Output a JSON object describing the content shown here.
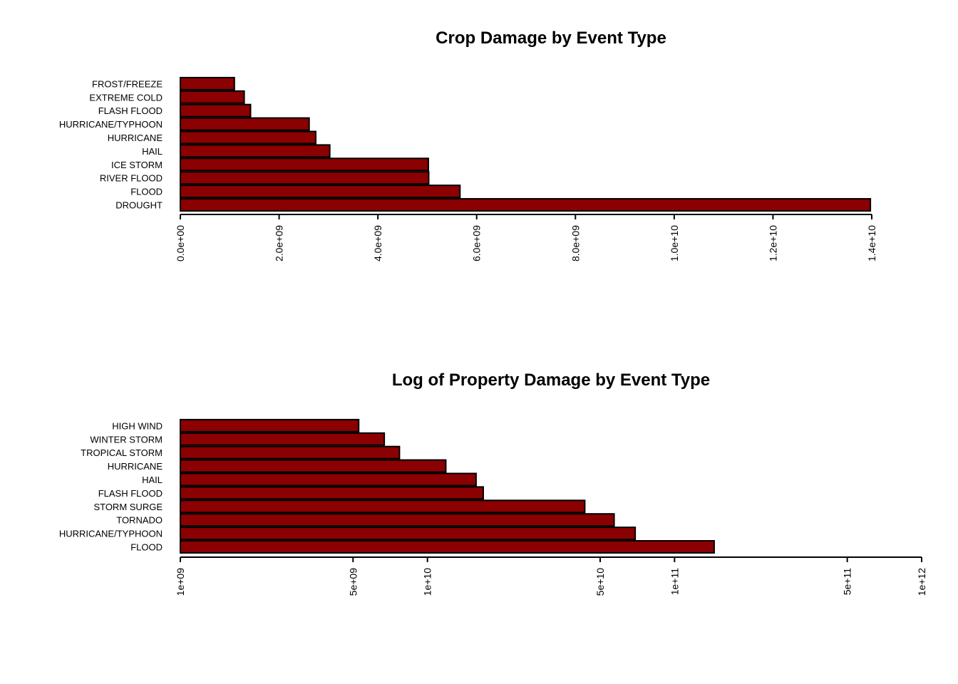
{
  "chart_data": [
    {
      "type": "bar",
      "orientation": "horizontal",
      "title": "Crop Damage by Event Type",
      "xlabel": "",
      "ylabel": "",
      "scale": "linear",
      "xlim": [
        0,
        14000000000
      ],
      "bar_color": "#8B0000",
      "categories": [
        "DROUGHT",
        "FLOOD",
        "RIVER FLOOD",
        "ICE STORM",
        "HAIL",
        "HURRICANE",
        "HURRICANE/TYPHOON",
        "FLASH FLOOD",
        "EXTREME COLD",
        "FROST/FREEZE"
      ],
      "values": [
        13972566000,
        5661968450,
        5029459000,
        5022113500,
        3025954473,
        2741910000,
        2607872800,
        1421317100,
        1292973000,
        1094086000
      ],
      "ticks": [
        0,
        2000000000,
        4000000000,
        6000000000,
        8000000000,
        10000000000,
        12000000000,
        14000000000
      ],
      "tick_labels": [
        "0.0e+00",
        "2.0e+09",
        "4.0e+09",
        "6.0e+09",
        "8.0e+09",
        "1.0e+10",
        "1.2e+10",
        "1.4e+10"
      ],
      "grid": false,
      "legend": "none"
    },
    {
      "type": "bar",
      "orientation": "horizontal",
      "title": "Log of Property Damage by Event Type",
      "xlabel": "",
      "ylabel": "",
      "scale": "log",
      "xlim": [
        1000000000,
        1000000000000
      ],
      "bar_color": "#8B0000",
      "categories": [
        "FLOOD",
        "HURRICANE/TYPHOON",
        "TORNADO",
        "STORM SURGE",
        "FLASH FLOOD",
        "HAIL",
        "HURRICANE",
        "TROPICAL STORM",
        "WINTER STORM",
        "HIGH WIND"
      ],
      "values": [
        144657709807,
        69305840000,
        56947380677,
        43323536000,
        16822673979,
        15735267513,
        11868319010,
        7703890550,
        6688497251,
        5270046295
      ],
      "ticks": [
        1000000000,
        5000000000,
        10000000000,
        50000000000,
        100000000000,
        500000000000,
        1000000000000
      ],
      "tick_labels": [
        "1e+09",
        "5e+09",
        "1e+10",
        "5e+10",
        "1e+11",
        "5e+11",
        "1e+12"
      ],
      "grid": false,
      "legend": "none"
    }
  ]
}
